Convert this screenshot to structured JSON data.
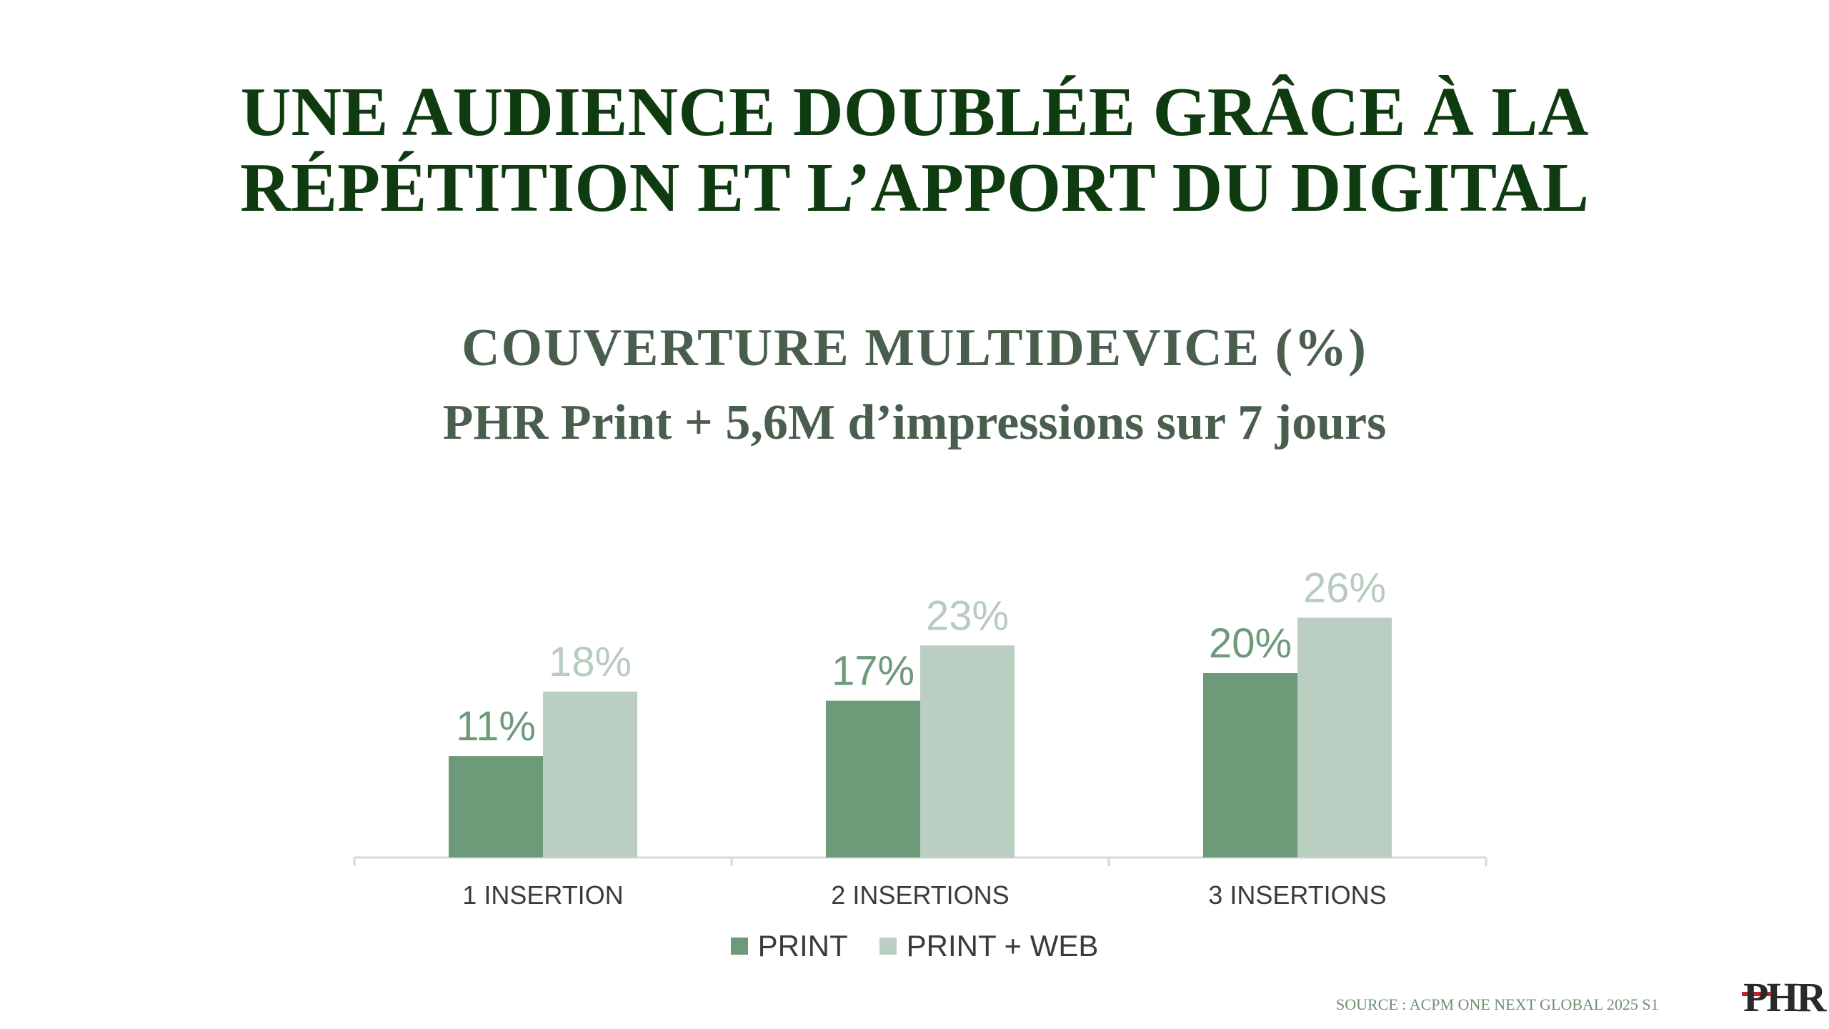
{
  "title_lines": [
    "UNE AUDIENCE DOUBLÉE GRÂCE À LA",
    "RÉPÉTITION ET L’APPORT DU DIGITAL"
  ],
  "subtitle": "COUVERTURE MULTIDEVICE (%)",
  "subtitle2": "PHR Print + 5,6M d’impressions sur 7 jours",
  "chart_data": {
    "type": "bar",
    "categories": [
      "1 INSERTION",
      "2 INSERTIONS",
      "3 INSERTIONS"
    ],
    "series": [
      {
        "name": "PRINT",
        "values": [
          11,
          17,
          20
        ],
        "labels": [
          "11%",
          "17%",
          "20%"
        ],
        "color": "#6d9a79",
        "label_color": "#6d9a79"
      },
      {
        "name": "PRINT + WEB",
        "values": [
          18,
          23,
          26
        ],
        "labels": [
          "18%",
          "23%",
          "26%"
        ],
        "color": "#bacfc1",
        "label_color": "#b7ccbf"
      }
    ],
    "ylim": [
      0,
      30
    ],
    "grid": false,
    "legend": "bottom-center"
  },
  "legend": {
    "print": "PRINT",
    "print_web": "PRINT + WEB"
  },
  "source": "SOURCE : ACPM ONE NEXT GLOBAL 2025 S1",
  "logo_text": "PHR",
  "colors": {
    "title": "#0f3b10",
    "subtitle": "#4a5e4d",
    "axis": "#d9d9d9",
    "tick_label": "#3a3a3a"
  }
}
